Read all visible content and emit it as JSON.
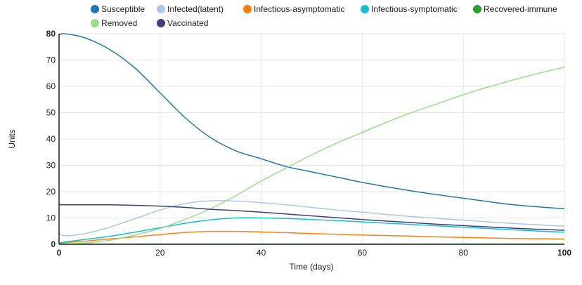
{
  "chart_data": {
    "type": "line",
    "xlabel": "Time (days)",
    "ylabel": "Units",
    "xlim": [
      0,
      100
    ],
    "ylim": [
      0,
      80
    ],
    "x_ticks": [
      "0",
      "20",
      "40",
      "60",
      "80",
      "100"
    ],
    "y_ticks": [
      "0",
      "10",
      "20",
      "30",
      "40",
      "50",
      "60",
      "70",
      "80"
    ],
    "grid": true,
    "legend_position": "top",
    "x": [
      0,
      1,
      5,
      10,
      15,
      20,
      25,
      30,
      35,
      40,
      45,
      50,
      55,
      60,
      65,
      70,
      75,
      80,
      85,
      90,
      95,
      100
    ],
    "series": [
      {
        "name": "Susceptible",
        "color": "#1f77b4",
        "values": [
          79.5,
          80,
          78.5,
          74,
          67,
          57.5,
          48,
          40.5,
          35.5,
          32.5,
          29.5,
          27.5,
          25.5,
          23.5,
          21.8,
          20.2,
          18.8,
          17.5,
          16.2,
          15,
          14.2,
          13.5
        ]
      },
      {
        "name": "Infected(latent)",
        "color": "#aec7e8",
        "values": [
          4.5,
          3.3,
          4,
          6.5,
          9.7,
          13,
          15.5,
          16.5,
          16.4,
          15.8,
          15,
          14,
          13,
          12.2,
          11.3,
          10.5,
          9.8,
          9.2,
          8.5,
          7.9,
          7.4,
          6.9
        ]
      },
      {
        "name": "Infectious-asymptomatic",
        "color": "#ff7f0e",
        "values": [
          0.3,
          0.6,
          1.2,
          2,
          2.8,
          3.7,
          4.5,
          4.9,
          4.9,
          4.7,
          4.4,
          4.1,
          3.8,
          3.5,
          3.3,
          3.1,
          2.8,
          2.6,
          2.4,
          2.2,
          2.1,
          2
        ]
      },
      {
        "name": "Infectious-symptomatic",
        "color": "#17becf",
        "values": [
          0.3,
          0.8,
          1.8,
          3,
          4.6,
          6.3,
          8,
          9.3,
          10,
          10,
          9.8,
          9.4,
          9,
          8.5,
          8,
          7.5,
          7,
          6.5,
          6,
          5.5,
          5,
          4.6
        ]
      },
      {
        "name": "Recovered-immune",
        "color": "#2ca02c",
        "values": [
          0.1,
          0.1,
          0.1,
          0.1,
          0.1,
          0.1,
          0.1,
          0.1,
          0.1,
          0.1,
          0.1,
          0.1,
          0.1,
          0.1,
          0.1,
          0.1,
          0.1,
          0.1,
          0.1,
          0.1,
          0.1,
          0.1
        ]
      },
      {
        "name": "Removed",
        "color": "#98df8a",
        "values": [
          0,
          0.1,
          0.5,
          1.5,
          3.5,
          6,
          9.5,
          13.5,
          18.5,
          24,
          29,
          34,
          38.5,
          42.5,
          46.5,
          50.2,
          53.5,
          56.8,
          59.8,
          62.5,
          65,
          67.3
        ]
      },
      {
        "name": "Vaccinated",
        "color": "#3b3f7a",
        "values": [
          15,
          15,
          15,
          15,
          14.8,
          14.5,
          14,
          13.3,
          12.8,
          12.2,
          11.5,
          10.8,
          10.1,
          9.4,
          8.8,
          8.2,
          7.6,
          7.1,
          6.6,
          6.1,
          5.7,
          5.3
        ]
      }
    ]
  }
}
